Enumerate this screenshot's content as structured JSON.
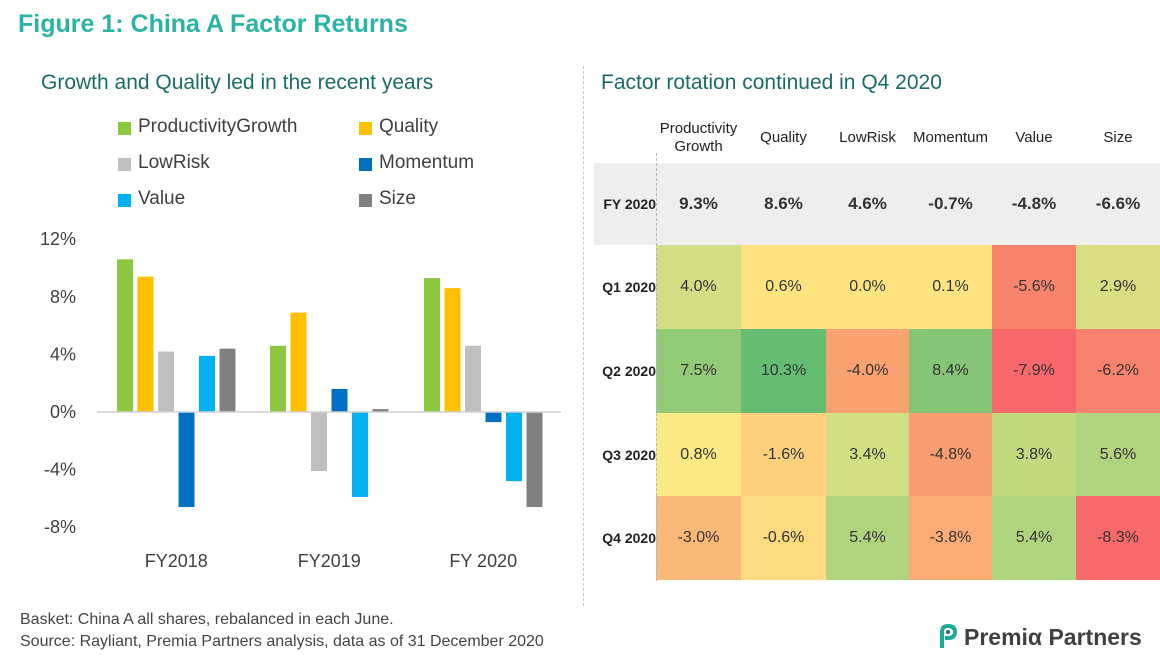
{
  "figure_title": "Figure 1: China A Factor Returns",
  "left_title": "Growth and Quality led in the recent years",
  "right_title": "Factor rotation continued in Q4 2020",
  "footnotes": {
    "basket": "Basket: China A all shares, rebalanced in each June.",
    "source": "Source: Rayliant, Premia Partners analysis, data as of 31 December 2020"
  },
  "logo_text": "Premiα Partners",
  "chart_data": [
    {
      "type": "bar",
      "title": "Growth and Quality led in the recent years",
      "categories": [
        "FY2018",
        "FY2019",
        "FY 2020"
      ],
      "series": [
        {
          "name": "ProductivityGrowth",
          "color": "#8dc63f",
          "values": [
            10.6,
            4.6,
            9.3
          ]
        },
        {
          "name": "Quality",
          "color": "#ffc000",
          "values": [
            9.4,
            6.9,
            8.6
          ]
        },
        {
          "name": "LowRisk",
          "color": "#bfbfbf",
          "values": [
            4.2,
            -4.1,
            4.6
          ]
        },
        {
          "name": "Momentum",
          "color": "#0070c0",
          "values": [
            -6.6,
            1.6,
            -0.7
          ]
        },
        {
          "name": "Value",
          "color": "#00b0f0",
          "values": [
            3.9,
            -5.9,
            -4.8
          ]
        },
        {
          "name": "Size",
          "color": "#808080",
          "values": [
            4.4,
            0.2,
            -6.6
          ]
        }
      ],
      "yticks": [
        "12%",
        "8%",
        "4%",
        "0%",
        "-4%",
        "-8%"
      ],
      "ylim": [
        -8,
        12
      ],
      "legend_position": "top",
      "grid": false
    },
    {
      "type": "heatmap",
      "title": "Factor rotation continued in Q4 2020",
      "columns": [
        "Productivity Growth",
        "Quality",
        "LowRisk",
        "Momentum",
        "Value",
        "Size"
      ],
      "fy_row": {
        "label": "FY 2020",
        "values": [
          "9.3%",
          "8.6%",
          "4.6%",
          "-0.7%",
          "-4.8%",
          "-6.6%"
        ]
      },
      "rows": [
        {
          "label": "Q1 2020",
          "values": [
            "4.0%",
            "0.6%",
            "0.0%",
            "0.1%",
            "-5.6%",
            "2.9%"
          ],
          "colors": [
            "#d4de84",
            "#fde481",
            "#fde481",
            "#fde481",
            "#f8846e",
            "#dade82"
          ]
        },
        {
          "label": "Q2 2020",
          "values": [
            "7.5%",
            "10.3%",
            "-4.0%",
            "8.4%",
            "-7.9%",
            "-6.2%"
          ],
          "colors": [
            "#92ca78",
            "#65bd72",
            "#f9a271",
            "#86c577",
            "#f6686b",
            "#f7826d"
          ]
        },
        {
          "label": "Q3 2020",
          "values": [
            "0.8%",
            "-1.6%",
            "3.4%",
            "-4.8%",
            "3.8%",
            "5.6%"
          ],
          "colors": [
            "#fbe983",
            "#fed07e",
            "#d2df82",
            "#f99c6f",
            "#c3d980",
            "#b0d37e"
          ]
        },
        {
          "label": "Q4 2020",
          "values": [
            "-3.0%",
            "-0.6%",
            "5.4%",
            "-3.8%",
            "5.4%",
            "-8.3%"
          ],
          "colors": [
            "#fbb978",
            "#feda80",
            "#b0d47e",
            "#fbab75",
            "#b0d47e",
            "#f7696b"
          ]
        }
      ]
    }
  ]
}
